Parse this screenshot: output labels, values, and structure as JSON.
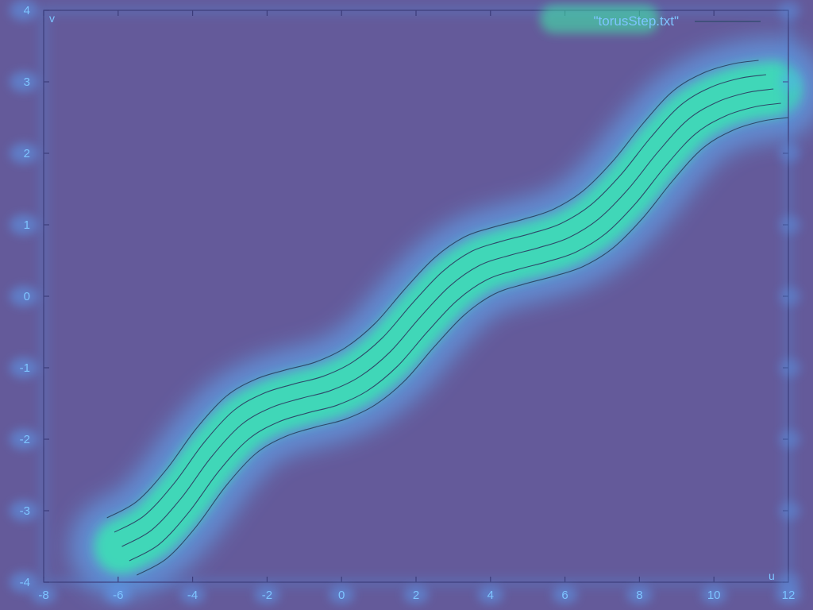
{
  "chart_data": {
    "type": "line",
    "xlabel": "u",
    "ylabel": "v",
    "xlim": [
      -8,
      12
    ],
    "ylim": [
      -4,
      4
    ],
    "x_ticks": [
      "-8",
      "-6",
      "-4",
      "-2",
      "0",
      "2",
      "4",
      "6",
      "8",
      "10",
      "12"
    ],
    "y_ticks": [
      "4",
      "3",
      "2",
      "1",
      "0",
      "-1",
      "-2",
      "-3",
      "-4"
    ],
    "legend": {
      "position": "top-right",
      "label": "\"torusStep.txt\""
    },
    "grid": false,
    "series": [
      {
        "x": [
          -6.3,
          -5.5,
          -4.7,
          -3.9,
          -3.1,
          -2.3,
          -1.5,
          -0.7,
          0.1,
          0.9,
          1.7,
          2.5,
          3.3,
          4.1,
          4.9,
          5.7,
          6.5,
          7.3,
          8.1,
          8.9,
          9.7,
          10.5,
          11.2
        ],
        "y": [
          -3.1,
          -2.87,
          -2.42,
          -1.85,
          -1.4,
          -1.16,
          -1.03,
          -0.92,
          -0.72,
          -0.38,
          0.1,
          0.54,
          0.83,
          0.97,
          1.08,
          1.22,
          1.48,
          1.9,
          2.42,
          2.87,
          3.12,
          3.25,
          3.3
        ]
      },
      {
        "x": [
          -6.1,
          -5.3,
          -4.5,
          -3.7,
          -2.9,
          -2.1,
          -1.3,
          -0.5,
          0.3,
          1.1,
          1.9,
          2.7,
          3.5,
          4.3,
          5.1,
          5.9,
          6.7,
          7.5,
          8.3,
          9.1,
          9.9,
          10.7,
          11.4
        ],
        "y": [
          -3.3,
          -3.07,
          -2.62,
          -2.05,
          -1.6,
          -1.36,
          -1.23,
          -1.12,
          -0.92,
          -0.58,
          -0.1,
          0.34,
          0.63,
          0.77,
          0.88,
          1.02,
          1.28,
          1.7,
          2.22,
          2.67,
          2.92,
          3.05,
          3.1
        ]
      },
      {
        "x": [
          -5.9,
          -5.1,
          -4.3,
          -3.5,
          -2.7,
          -1.9,
          -1.1,
          -0.3,
          0.5,
          1.3,
          2.1,
          2.9,
          3.7,
          4.5,
          5.3,
          6.1,
          6.9,
          7.7,
          8.5,
          9.3,
          10.1,
          10.9,
          11.6
        ],
        "y": [
          -3.5,
          -3.27,
          -2.82,
          -2.25,
          -1.8,
          -1.56,
          -1.43,
          -1.32,
          -1.12,
          -0.78,
          -0.3,
          0.14,
          0.43,
          0.57,
          0.68,
          0.82,
          1.08,
          1.5,
          2.02,
          2.47,
          2.72,
          2.85,
          2.9
        ]
      },
      {
        "x": [
          -5.7,
          -4.9,
          -4.1,
          -3.3,
          -2.5,
          -1.7,
          -0.9,
          -0.1,
          0.7,
          1.5,
          2.3,
          3.1,
          3.9,
          4.7,
          5.5,
          6.3,
          7.1,
          7.9,
          8.7,
          9.5,
          10.3,
          11.1,
          11.8
        ],
        "y": [
          -3.7,
          -3.47,
          -3.02,
          -2.45,
          -2.0,
          -1.76,
          -1.63,
          -1.52,
          -1.32,
          -0.98,
          -0.5,
          -0.06,
          0.23,
          0.37,
          0.48,
          0.62,
          0.88,
          1.3,
          1.82,
          2.27,
          2.52,
          2.65,
          2.7
        ]
      },
      {
        "x": [
          -5.5,
          -4.7,
          -3.9,
          -3.1,
          -2.3,
          -1.5,
          -0.7,
          0.1,
          0.9,
          1.7,
          2.5,
          3.3,
          4.1,
          4.9,
          5.7,
          6.5,
          7.3,
          8.1,
          8.9,
          9.7,
          10.5,
          11.3,
          12.0
        ],
        "y": [
          -3.9,
          -3.67,
          -3.22,
          -2.65,
          -2.2,
          -1.96,
          -1.83,
          -1.72,
          -1.52,
          -1.18,
          -0.7,
          -0.26,
          0.03,
          0.17,
          0.28,
          0.42,
          0.68,
          1.1,
          1.62,
          2.07,
          2.32,
          2.45,
          2.5
        ]
      }
    ]
  },
  "colors": {
    "background": "#645a9a",
    "frame": "#3c3c7a",
    "line": "#2e4a6a",
    "glow": "#35f0b0",
    "halo": "#5fb6ff"
  }
}
